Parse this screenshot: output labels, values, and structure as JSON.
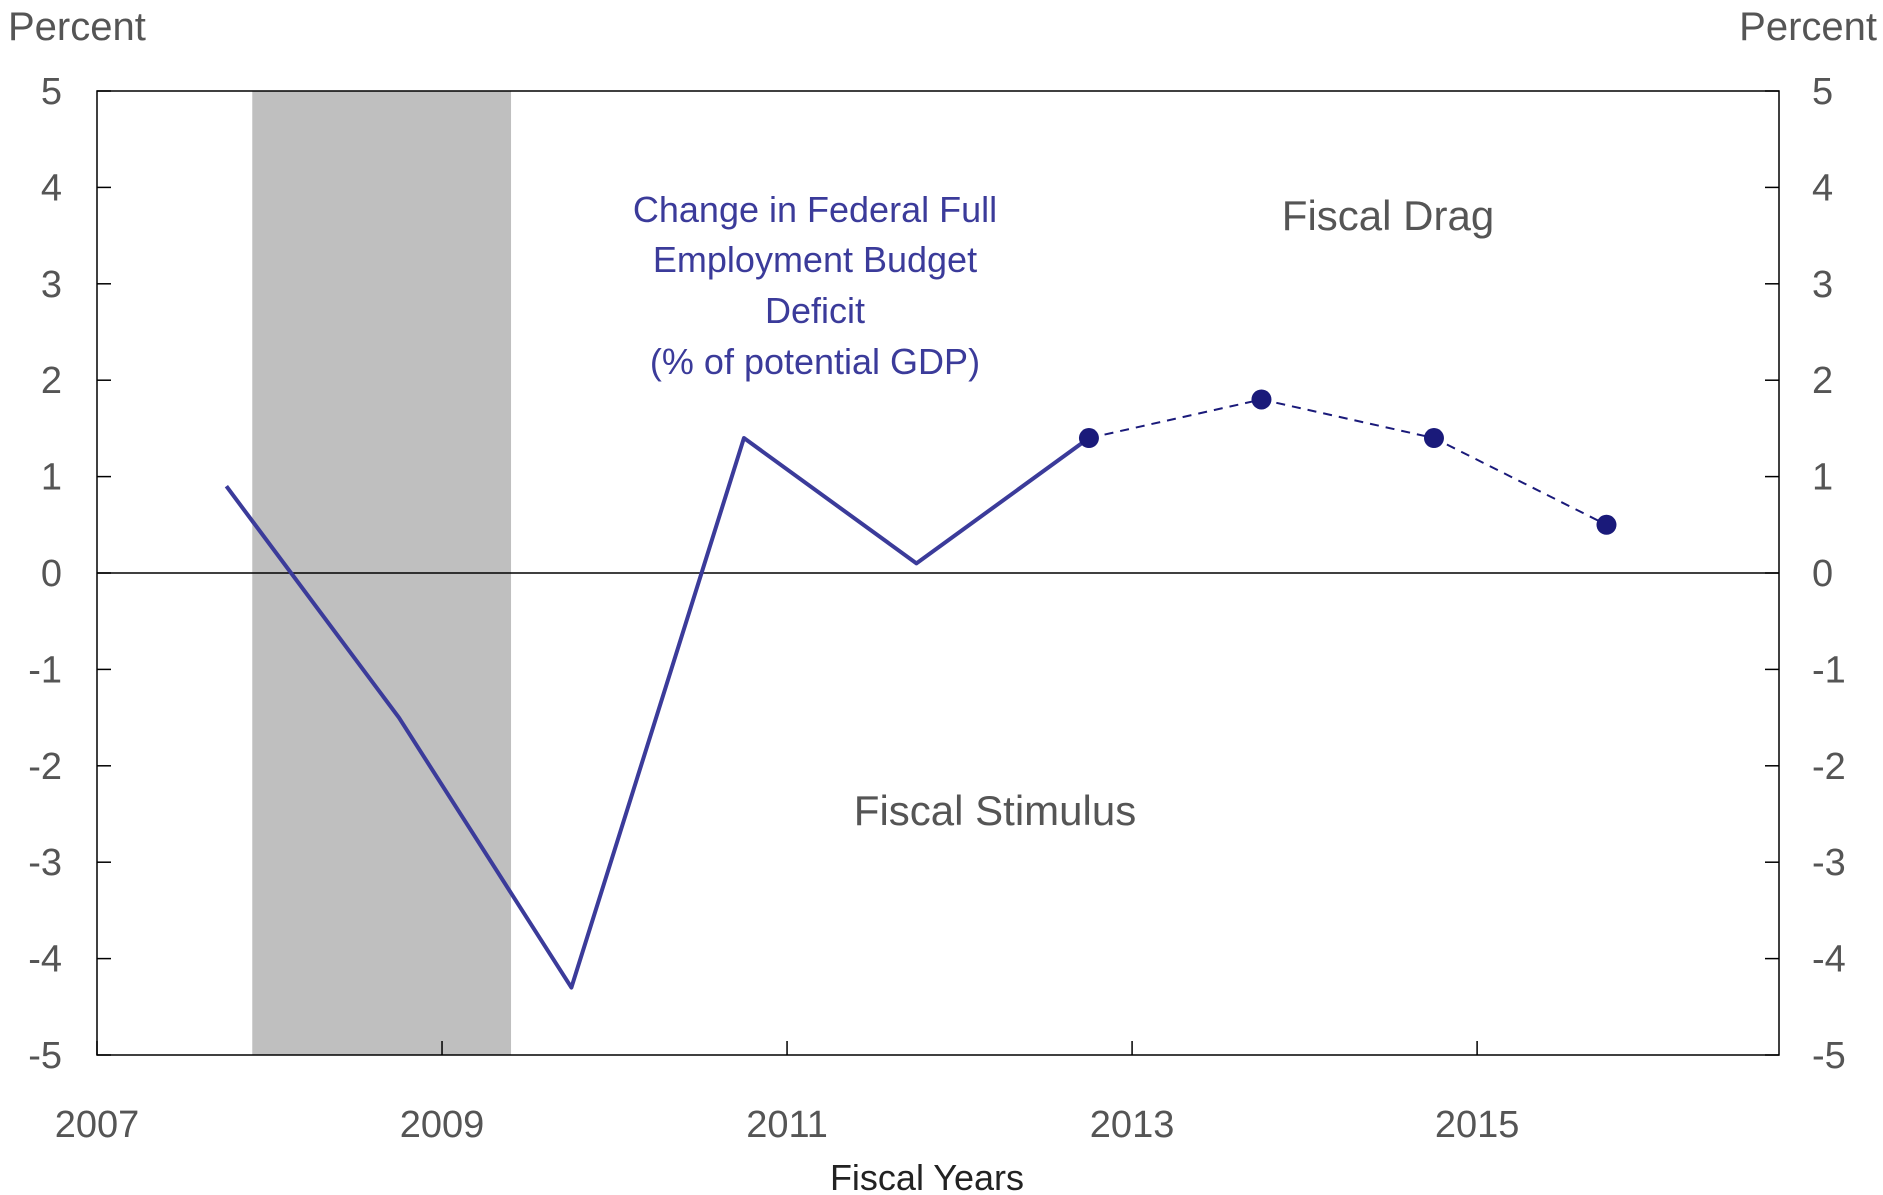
{
  "chart_data": {
    "type": "line",
    "xlabel": "Fiscal Years",
    "ylabel_left": "Percent",
    "ylabel_right": "Percent",
    "xlim": [
      2007,
      2016.75
    ],
    "ylim": [
      -5,
      5
    ],
    "x_ticks": [
      2007,
      2009,
      2011,
      2013,
      2015
    ],
    "x_tick_labels": [
      "2007",
      "2009",
      "2011",
      "2013",
      "2015"
    ],
    "y_ticks": [
      -5,
      -4,
      -3,
      -2,
      -1,
      0,
      1,
      2,
      3,
      4,
      5
    ],
    "y_tick_labels": [
      "-5",
      "-4",
      "-3",
      "-2",
      "-1",
      "0",
      "1",
      "2",
      "3",
      "4",
      "5"
    ],
    "recession_band": {
      "x_start": 2007.9,
      "x_end": 2009.4,
      "color": "#bfbfbf"
    },
    "annotations": {
      "series_label_lines": [
        "Change in Federal Full",
        "Employment Budget",
        "Deficit",
        "(% of potential GDP)"
      ],
      "fiscal_drag": "Fiscal Drag",
      "fiscal_stimulus": "Fiscal Stimulus"
    },
    "series": [
      {
        "style": "solid",
        "color": "#3b3b9a",
        "x": [
          2007.75,
          2008.75,
          2009.75,
          2010.75,
          2011.75,
          2012.75
        ],
        "y": [
          0.9,
          -1.5,
          -4.3,
          1.4,
          0.1,
          1.4
        ]
      },
      {
        "style": "dashed-with-markers",
        "color": "#1a1a7a",
        "x": [
          2012.75,
          2013.75,
          2014.75,
          2015.75
        ],
        "y": [
          1.4,
          1.8,
          1.4,
          0.5
        ]
      }
    ]
  }
}
